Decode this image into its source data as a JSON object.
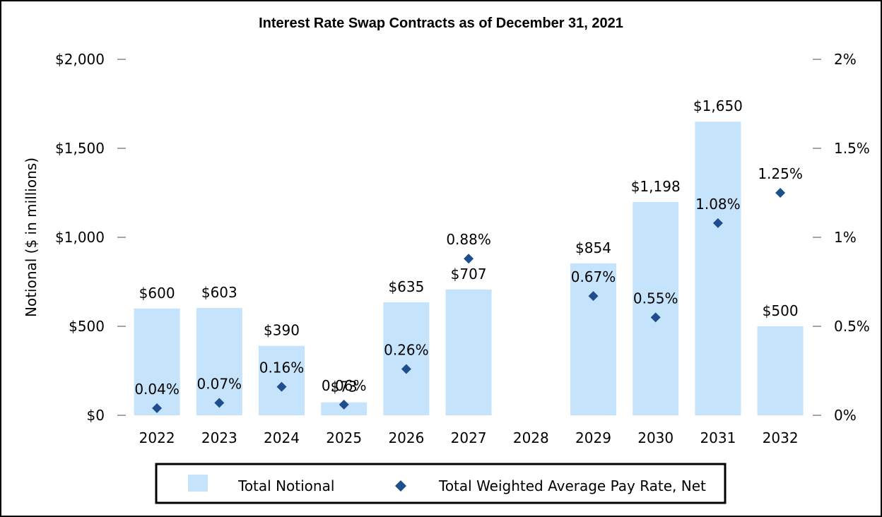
{
  "chart_data": {
    "type": "bar",
    "title": "Interest Rate Swap Contracts as of December 31, 2021",
    "ylabel": "Notional ($ in millions)",
    "y2label": "",
    "categories": [
      "2022",
      "2023",
      "2024",
      "2025",
      "2026",
      "2027",
      "2028",
      "2029",
      "2030",
      "2031",
      "2032"
    ],
    "ylim": [
      0,
      2000
    ],
    "y2lim": [
      0,
      2
    ],
    "y_ticks": [
      "$0",
      "$500",
      "$1,000",
      "$1,500",
      "$2,000"
    ],
    "y2_ticks": [
      "0%",
      "0.5%",
      "1%",
      "1.5%",
      "2%"
    ],
    "series": [
      {
        "name": "Total Notional",
        "type": "bar",
        "axis": "left",
        "color": "#c5e4fb",
        "values": [
          600,
          603,
          390,
          73,
          635,
          707,
          null,
          854,
          1198,
          1650,
          500
        ],
        "labels": [
          "$600",
          "$603",
          "$390",
          "$73",
          "$635",
          "$707",
          "",
          "$854",
          "$1,198",
          "$1,650",
          "$500"
        ]
      },
      {
        "name": "Total Weighted Average Pay Rate, Net",
        "type": "scatter",
        "marker": "diamond",
        "axis": "right",
        "color": "#1f4e8c",
        "values": [
          0.04,
          0.07,
          0.16,
          0.06,
          0.26,
          0.88,
          null,
          0.67,
          0.55,
          1.08,
          1.25
        ],
        "labels": [
          "0.04%",
          "0.07%",
          "0.16%",
          "0.06%",
          "0.26%",
          "0.88%",
          "",
          "0.67%",
          "0.55%",
          "1.08%",
          "1.25%"
        ]
      }
    ],
    "grid": false,
    "legend": "bottom"
  }
}
